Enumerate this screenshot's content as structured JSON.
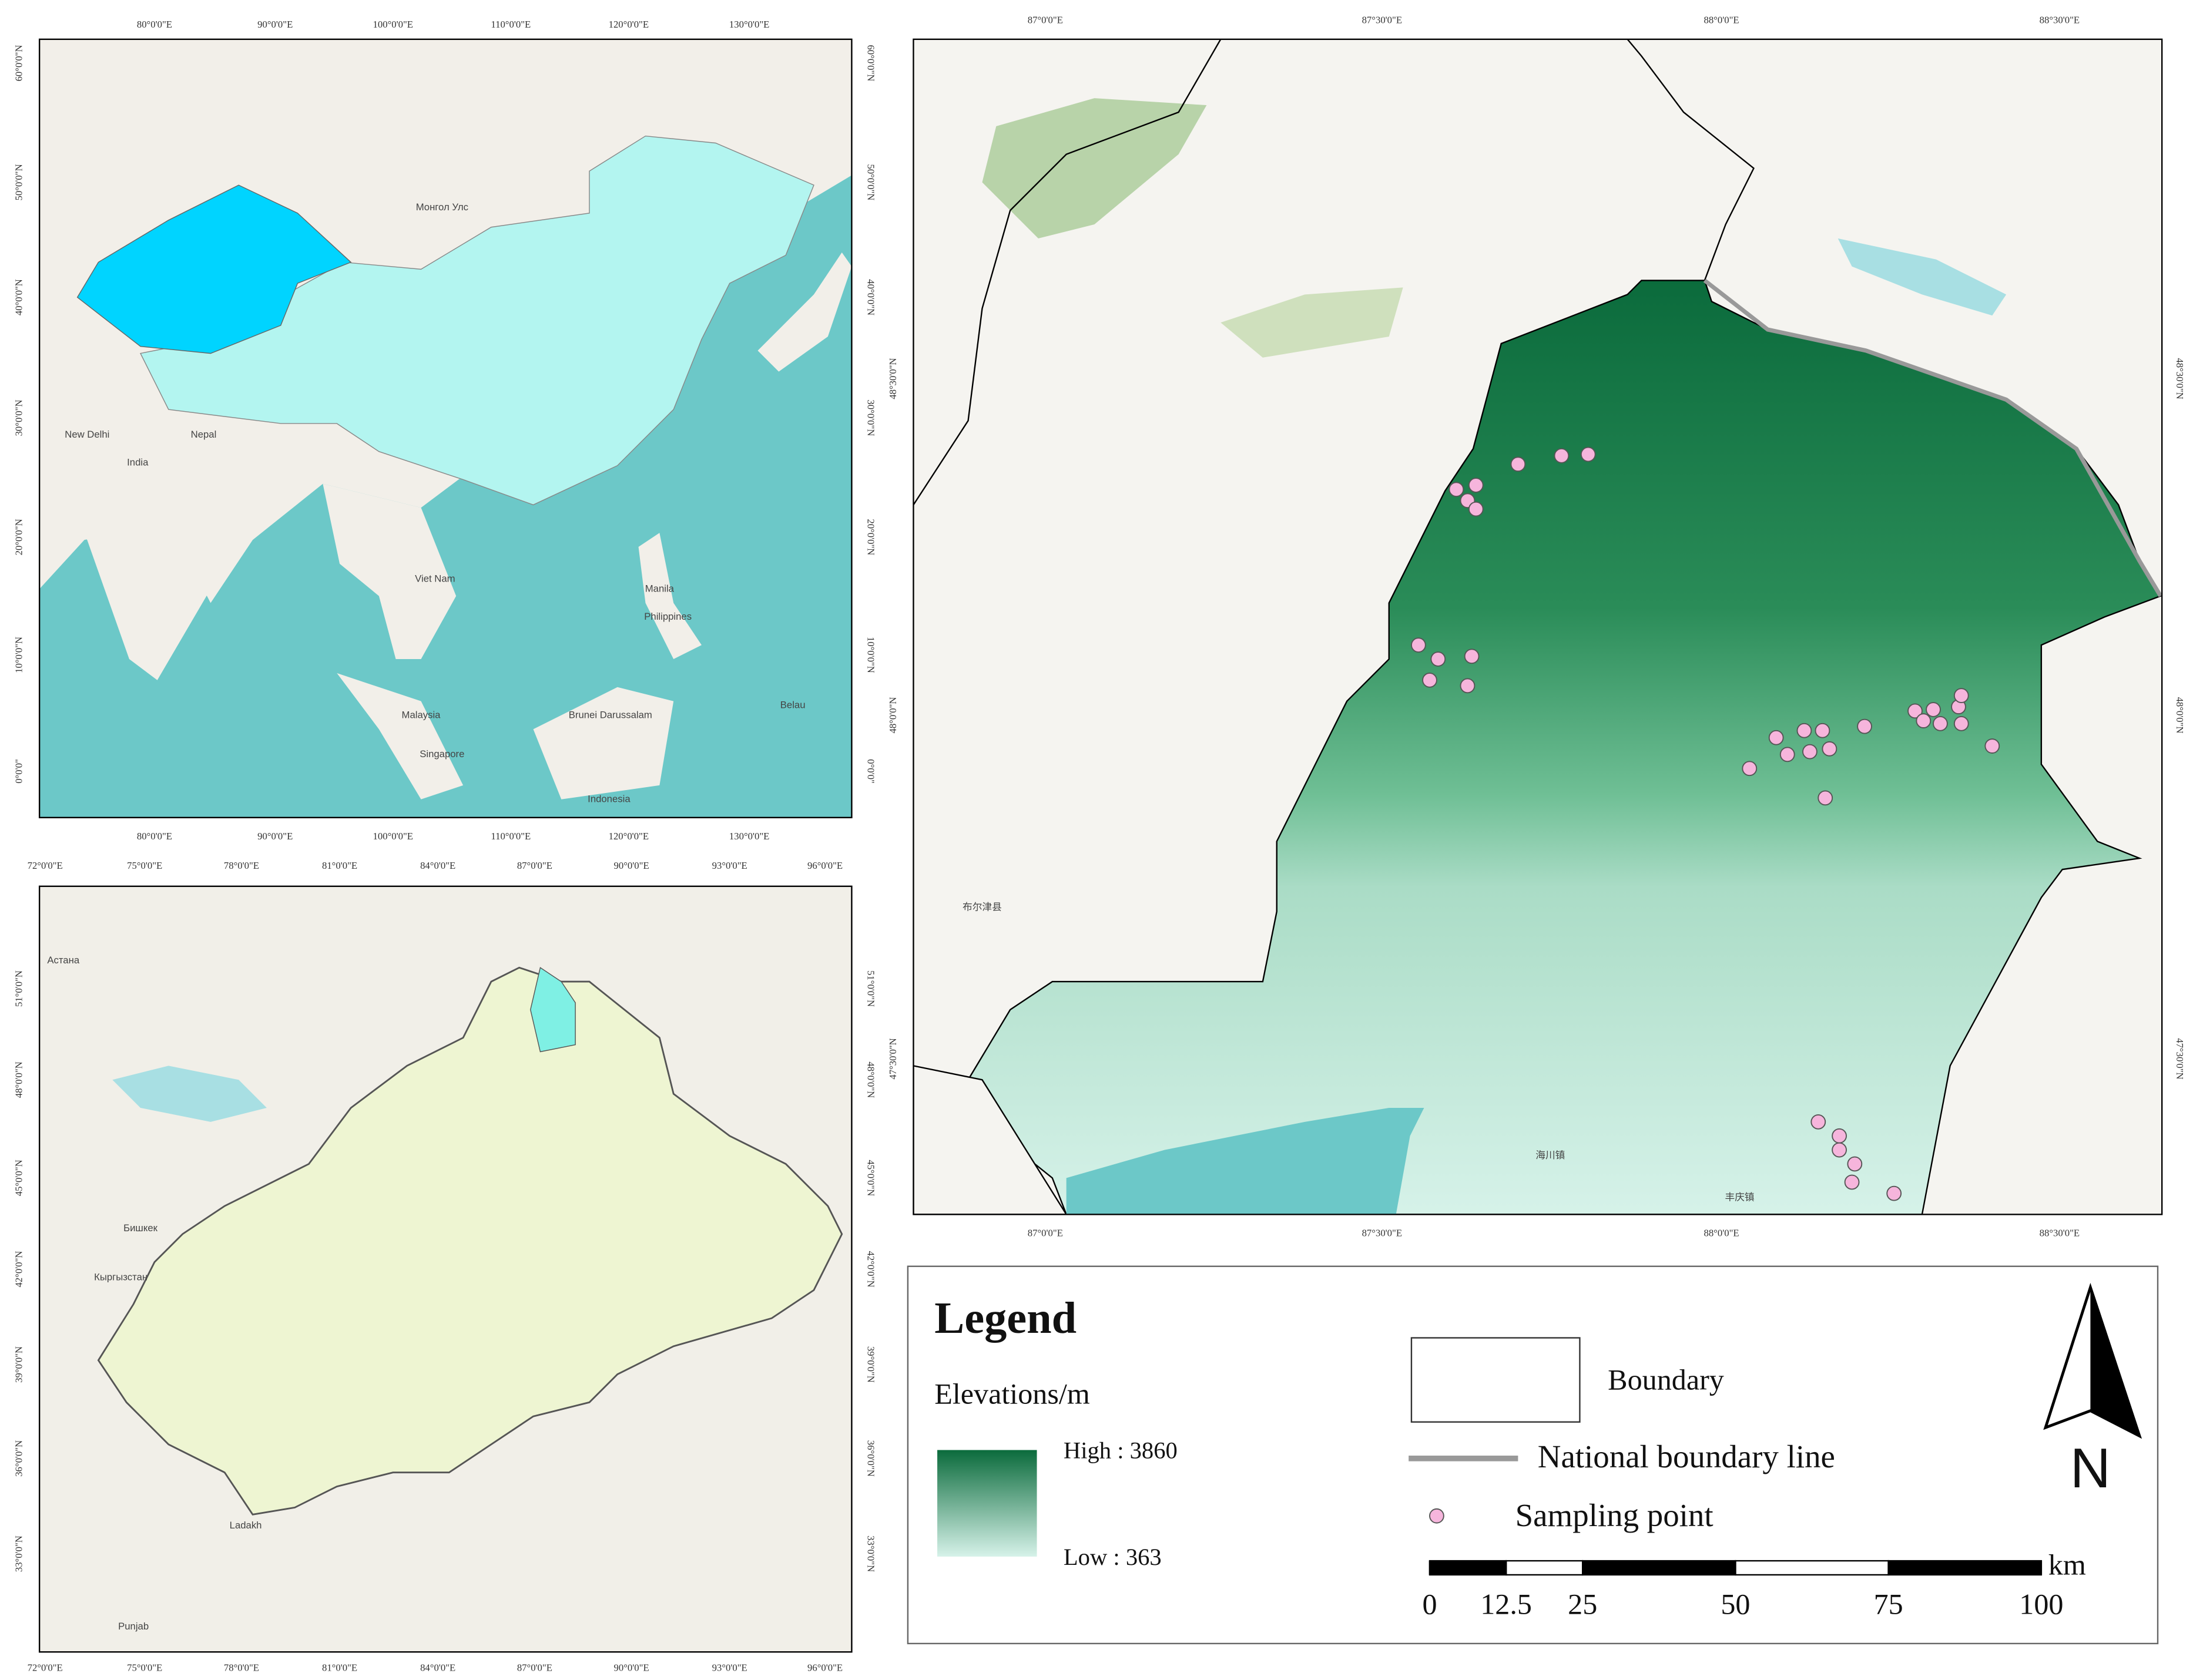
{
  "panels": {
    "asia": {
      "x_labels": [
        "80°0'0\"E",
        "90°0'0\"E",
        "100°0'0\"E",
        "110°0'0\"E",
        "120°0'0\"E",
        "130°0'0\"E"
      ],
      "y_labels": [
        "60°0'0\"N",
        "50°0'0\"N",
        "40°0'0\"N",
        "30°0'0\"N",
        "20°0'0\"N",
        "10°0'0\"N",
        "0°0'0\""
      ],
      "places": [
        "Монгол Улс",
        "New Delhi",
        "Nepal",
        "India",
        "Viet Nam",
        "Manila",
        "Philippines",
        "Malaysia",
        "Singapore",
        "Brunei Darussalam",
        "Indonesia",
        "Belau"
      ]
    },
    "xinjiang": {
      "x_labels": [
        "72°0'0\"E",
        "75°0'0\"E",
        "78°0'0\"E",
        "81°0'0\"E",
        "84°0'0\"E",
        "87°0'0\"E",
        "90°0'0\"E",
        "93°0'0\"E",
        "96°0'0\"E"
      ],
      "y_labels": [
        "51°0'0\"N",
        "48°0'0\"N",
        "45°0'0\"N",
        "42°0'0\"N",
        "39°0'0\"N",
        "36°0'0\"N",
        "33°0'0\"N"
      ],
      "places": [
        "Астана",
        "Бишкек",
        "Кыргызстан",
        "Ladakh",
        "Punjab"
      ]
    },
    "study_area": {
      "x_labels": [
        "87°0'0\"E",
        "87°30'0\"E",
        "88°0'0\"E",
        "88°30'0\"E"
      ],
      "y_labels": [
        "48°30'0\"N",
        "48°0'0\"N",
        "47°30'0\"N"
      ],
      "places": [
        "布尔津县",
        "海川镇",
        "丰庆镇"
      ]
    }
  },
  "legend": {
    "title": "Legend",
    "elevation_title": "Elevations/m",
    "high": "High : 3860",
    "low": "Low : 363",
    "boundary": "Boundary",
    "national_boundary": "National boundary line",
    "sampling_point": "Sampling point",
    "scale_ticks": [
      0,
      12.5,
      25,
      50,
      75,
      100
    ],
    "scale_unit": "km",
    "north": "N"
  }
}
